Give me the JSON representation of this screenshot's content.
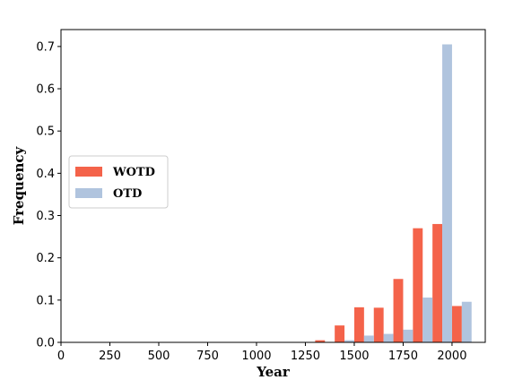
{
  "chart_data": {
    "type": "bar",
    "xlabel": "Year",
    "ylabel": "Frequency",
    "xlim": [
      0,
      2170
    ],
    "ylim": [
      0,
      0.74
    ],
    "xticks": [
      "0",
      "250",
      "500",
      "750",
      "1000",
      "1250",
      "1500",
      "1750",
      "2000"
    ],
    "yticks": [
      "0.0",
      "0.1",
      "0.2",
      "0.3",
      "0.4",
      "0.5",
      "0.6",
      "0.7"
    ],
    "bin_starts": [
      1300,
      1400,
      1500,
      1600,
      1700,
      1800,
      1900,
      2000
    ],
    "bin_width": 100,
    "grid": false,
    "legend_position": "center-left",
    "series": [
      {
        "name": "WOTD",
        "color": "#f4634a",
        "values": [
          0.005,
          0.04,
          0.083,
          0.082,
          0.15,
          0.27,
          0.28,
          0.086
        ]
      },
      {
        "name": "OTD",
        "color": "#b0c4de",
        "values": [
          0.0,
          0.005,
          0.016,
          0.02,
          0.03,
          0.106,
          0.705,
          0.096
        ]
      }
    ]
  }
}
